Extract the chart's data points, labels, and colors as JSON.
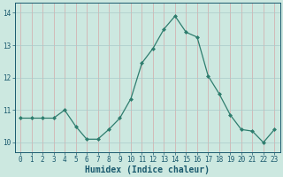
{
  "x": [
    0,
    1,
    2,
    3,
    4,
    5,
    6,
    7,
    8,
    9,
    10,
    11,
    12,
    13,
    14,
    15,
    16,
    17,
    18,
    19,
    20,
    21,
    22,
    23
  ],
  "y": [
    10.75,
    10.75,
    10.75,
    10.75,
    11.0,
    10.5,
    10.1,
    10.1,
    10.4,
    10.75,
    11.35,
    12.45,
    12.9,
    13.5,
    13.9,
    13.4,
    13.25,
    12.05,
    11.5,
    10.85,
    10.4,
    10.35,
    10.0,
    10.4
  ],
  "line_color": "#2e7d6e",
  "marker": "D",
  "marker_size": 2.0,
  "bg_color": "#cce8e0",
  "grid_x_color": "#d4a8a8",
  "grid_y_color": "#aacaca",
  "xlabel": "Humidex (Indice chaleur)",
  "ylim": [
    9.7,
    14.3
  ],
  "xlim": [
    -0.5,
    23.5
  ],
  "yticks": [
    10,
    11,
    12,
    13,
    14
  ],
  "xticks": [
    0,
    1,
    2,
    3,
    4,
    5,
    6,
    7,
    8,
    9,
    10,
    11,
    12,
    13,
    14,
    15,
    16,
    17,
    18,
    19,
    20,
    21,
    22,
    23
  ],
  "font_color": "#1a5a6e",
  "tick_label_fontsize": 5.5,
  "xlabel_fontsize": 7.0
}
